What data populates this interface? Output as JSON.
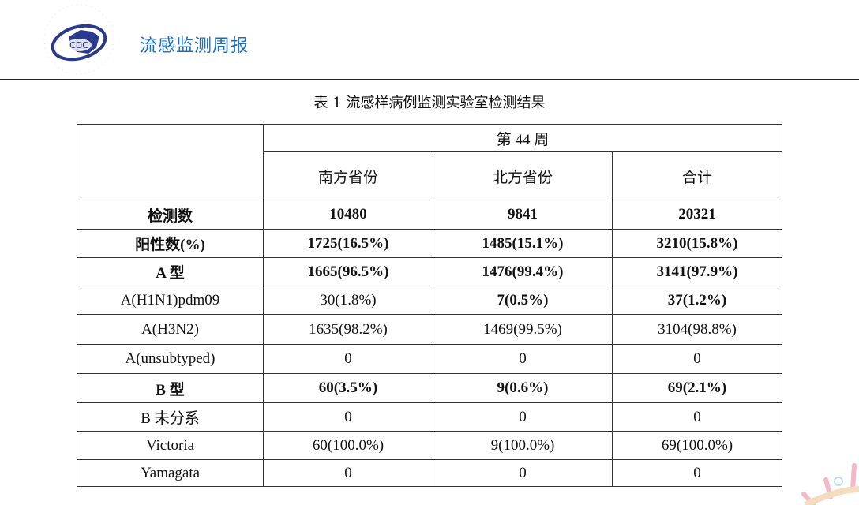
{
  "header": {
    "brand": "流感监测周报",
    "logo_text": "CDC",
    "logo_ring": "CHINESE CENTER FOR DISEASE CONTROL AND PREVENTION"
  },
  "caption": "表 1   流感样病例监测实验室检测结果",
  "table": {
    "week": "第 44 周",
    "columns": [
      "南方省份",
      "北方省份",
      "合计"
    ],
    "rows": [
      {
        "label": "检测数",
        "values": [
          "10480",
          "9841",
          "20321"
        ],
        "bold": [
          true,
          true,
          true,
          true
        ]
      },
      {
        "label": "阳性数(%)",
        "values": [
          "1725(16.5%)",
          "1485(15.1%)",
          "3210(15.8%)"
        ],
        "bold": [
          true,
          true,
          true,
          true
        ]
      },
      {
        "label": "A 型",
        "values": [
          "1665(96.5%)",
          "1476(99.4%)",
          "3141(97.9%)"
        ],
        "bold": [
          true,
          true,
          true,
          true
        ]
      },
      {
        "label": "A(H1N1)pdm09",
        "values": [
          "30(1.8%)",
          "7(0.5%)",
          "37(1.2%)"
        ],
        "bold": [
          false,
          false,
          true,
          true
        ]
      },
      {
        "label": "A(H3N2)",
        "values": [
          "1635(98.2%)",
          "1469(99.5%)",
          "3104(98.8%)"
        ],
        "bold": [
          false,
          false,
          false,
          false
        ]
      },
      {
        "label": "A(unsubtyped)",
        "values": [
          "0",
          "0",
          "0"
        ],
        "bold": [
          false,
          false,
          false,
          false
        ]
      },
      {
        "label": "B 型",
        "values": [
          "60(3.5%)",
          "9(0.6%)",
          "69(2.1%)"
        ],
        "bold": [
          true,
          true,
          true,
          true
        ]
      },
      {
        "label": "B 未分系",
        "values": [
          "0",
          "0",
          "0"
        ],
        "bold": [
          false,
          false,
          false,
          false
        ]
      },
      {
        "label": "Victoria",
        "values": [
          "60(100.0%)",
          "9(100.0%)",
          "69(100.0%)"
        ],
        "bold": [
          false,
          false,
          false,
          false
        ]
      },
      {
        "label": "Yamagata",
        "values": [
          "0",
          "0",
          "0"
        ],
        "bold": [
          false,
          false,
          false,
          false
        ]
      }
    ]
  },
  "colors": {
    "brand": "#1a6fc0",
    "logo": "#2a3a8c"
  }
}
